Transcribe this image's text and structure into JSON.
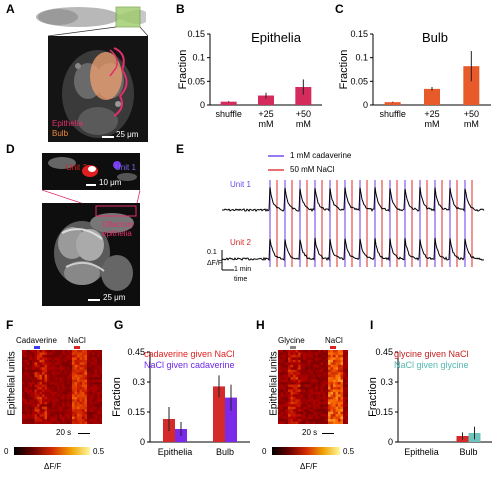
{
  "panels": {
    "A": {
      "label": "A",
      "legend_epithelia": "Epithelia",
      "legend_bulb": "Bulb",
      "scale": "25 μm",
      "colors": {
        "epithelia": "#e0306a",
        "bulb": "#f08a3a"
      }
    },
    "D": {
      "label": "D",
      "unit2": "Unit 2",
      "unit1": "Unit 1",
      "scale_top": "10 μm",
      "olf": "Olfactory",
      "epi": "epithelia",
      "scale_bottom": "25 μm"
    },
    "E": {
      "label": "E",
      "legend_cad": "1 mM cadaverine",
      "legend_nacl": "50 mM NaCl",
      "unit1": "Unit 1",
      "unit2": "Unit 2",
      "scale_y_value": "0.1",
      "scale_y_label": "ΔF/F",
      "scale_x": "1 min",
      "scale_x2": "time",
      "colors": {
        "cadaverine": "#9a7af0",
        "nacl": "#e87070"
      }
    },
    "F": {
      "label": "F",
      "stim1": "Cadaverine",
      "stim2": "NaCl",
      "ylabel": "Epithelial units",
      "scale": "20 s",
      "cbar_min": "0",
      "cbar_max": "0.5",
      "cbar_label": "ΔF/F"
    },
    "H": {
      "label": "H",
      "stim1": "Glycine",
      "stim2": "NaCl",
      "ylabel": "Epithelial units",
      "scale": "20 s",
      "cbar_min": "0",
      "cbar_max": "0.5",
      "cbar_label": "ΔF/F"
    }
  },
  "chart_data": [
    {
      "id": "B",
      "type": "bar",
      "title": "Epithelia",
      "ylabel": "Fraction",
      "categories": [
        "shuffle",
        "+25\nmM",
        "+50\nmM"
      ],
      "category_lines": [
        [
          "shuffle"
        ],
        [
          "+25",
          "mM"
        ],
        [
          "+50",
          "mM"
        ]
      ],
      "values": [
        0.007,
        0.02,
        0.038
      ],
      "errors": [
        0.001,
        0.006,
        0.016
      ],
      "ylim": [
        0,
        0.15
      ],
      "yticks": [
        "0",
        "0.05",
        "0.1",
        "0.15"
      ],
      "color": "#d42a5c"
    },
    {
      "id": "C",
      "type": "bar",
      "title": "Bulb",
      "ylabel": "Fraction",
      "categories": [
        "shuffle",
        "+25\nmM",
        "+50\nmM"
      ],
      "category_lines": [
        [
          "shuffle"
        ],
        [
          "+25",
          "mM"
        ],
        [
          "+50",
          "mM"
        ]
      ],
      "values": [
        0.006,
        0.034,
        0.082
      ],
      "errors": [
        0.001,
        0.004,
        0.032
      ],
      "ylim": [
        0,
        0.15
      ],
      "yticks": [
        "0",
        "0.05",
        "0.1",
        "0.15"
      ],
      "color": "#e85a2a"
    },
    {
      "id": "G",
      "type": "bar",
      "ylabel": "Fraction",
      "categories": [
        "Epithelia",
        "Bulb"
      ],
      "legend": [
        {
          "text": "cadaverine given",
          "text2": "NaCl",
          "color": "#e02020"
        },
        {
          "text": "NaCl given",
          "text2": "cadaverine",
          "color": "#6a2ae8"
        }
      ],
      "series": [
        {
          "color": "#d42a2a",
          "values": [
            0.115,
            0.278
          ],
          "errors": [
            0.06,
            0.055
          ]
        },
        {
          "color": "#7a2ae8",
          "values": [
            0.065,
            0.222
          ],
          "errors": [
            0.035,
            0.065
          ]
        }
      ],
      "ylim": [
        0,
        0.45
      ],
      "yticks": [
        "0",
        "0.15",
        "0.3",
        "0.45"
      ]
    },
    {
      "id": "I",
      "type": "bar",
      "ylabel": "Fraction",
      "categories": [
        "Epithelia",
        "Bulb"
      ],
      "legend": [
        {
          "text": "glycine given",
          "text2": "NaCl",
          "color": "#c02020"
        },
        {
          "text": "NaCl given",
          "text2": "glycine",
          "color": "#50b8b0"
        }
      ],
      "series": [
        {
          "color": "#d42a2a",
          "values": [
            0.0,
            0.03
          ],
          "errors": [
            0.0,
            0.018
          ]
        },
        {
          "color": "#6fc4bc",
          "values": [
            0.0,
            0.045
          ],
          "errors": [
            0.0,
            0.032
          ]
        }
      ],
      "ylim": [
        0,
        0.45
      ],
      "yticks": [
        "0",
        "0.15",
        "0.3",
        "0.45"
      ]
    }
  ]
}
